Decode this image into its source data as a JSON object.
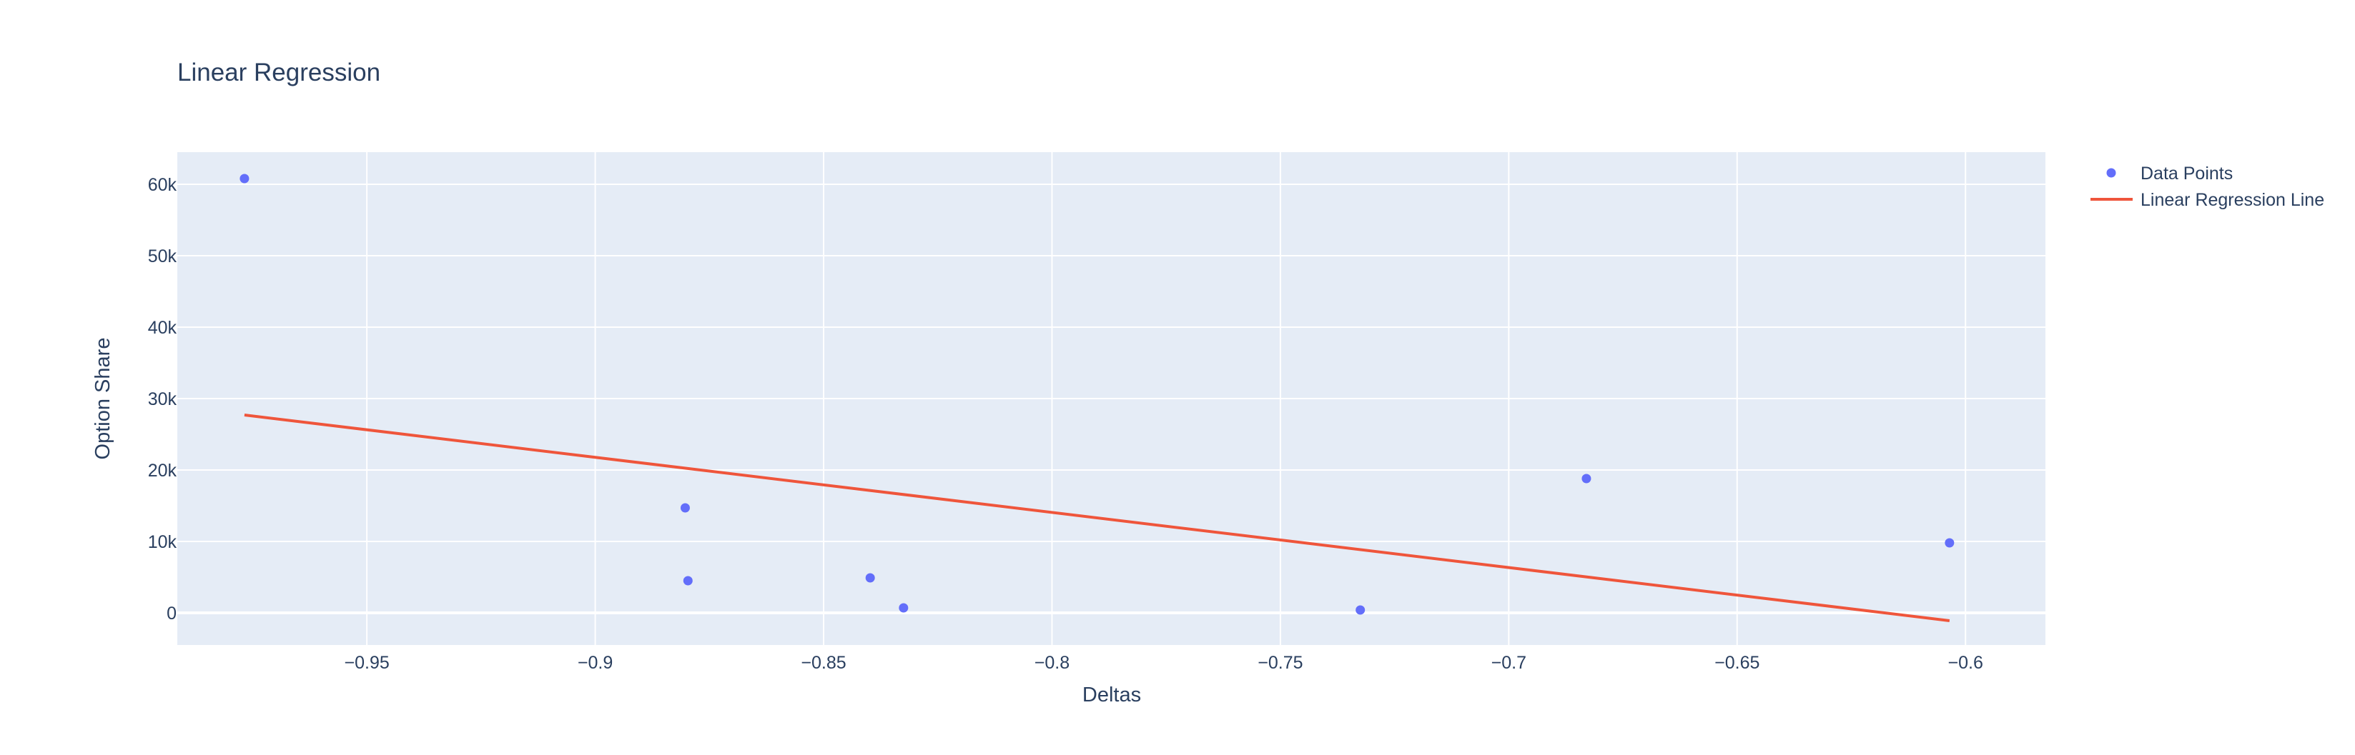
{
  "chart_data": {
    "type": "scatter",
    "title": "Linear Regression",
    "xlabel": "Deltas",
    "ylabel": "Option Share",
    "xlim": [
      -0.9915,
      -0.5825
    ],
    "ylim": [
      -4500,
      64500
    ],
    "x_ticks": [
      -0.95,
      -0.9,
      -0.85,
      -0.8,
      -0.75,
      -0.7,
      -0.65,
      -0.6
    ],
    "x_tick_labels": [
      "−0.95",
      "−0.9",
      "−0.85",
      "−0.8",
      "−0.75",
      "−0.7",
      "−0.65",
      "−0.6"
    ],
    "y_ticks": [
      0,
      10000,
      20000,
      30000,
      40000,
      50000,
      60000
    ],
    "y_tick_labels": [
      "0",
      "10k",
      "20k",
      "30k",
      "40k",
      "50k",
      "60k"
    ],
    "grid": true,
    "legend_position": "top-right, outside plot",
    "colors": {
      "plot_background": "#e5ecf6",
      "grid": "#ffffff",
      "points": "#636efa",
      "line": "#ef553b",
      "text": "#2a3f5f"
    },
    "series": [
      {
        "name": "Data Points",
        "mode": "markers",
        "x": [
          -0.9768,
          -0.8803,
          -0.8797,
          -0.8398,
          -0.8325,
          -0.7325,
          -0.683,
          -0.6035
        ],
        "y": [
          60800,
          14700,
          4500,
          4900,
          700,
          400,
          18800,
          9800
        ]
      },
      {
        "name": "Linear Regression Line",
        "mode": "lines",
        "x": [
          -0.9768,
          -0.6035
        ],
        "y": [
          27700,
          -1100
        ]
      }
    ]
  }
}
